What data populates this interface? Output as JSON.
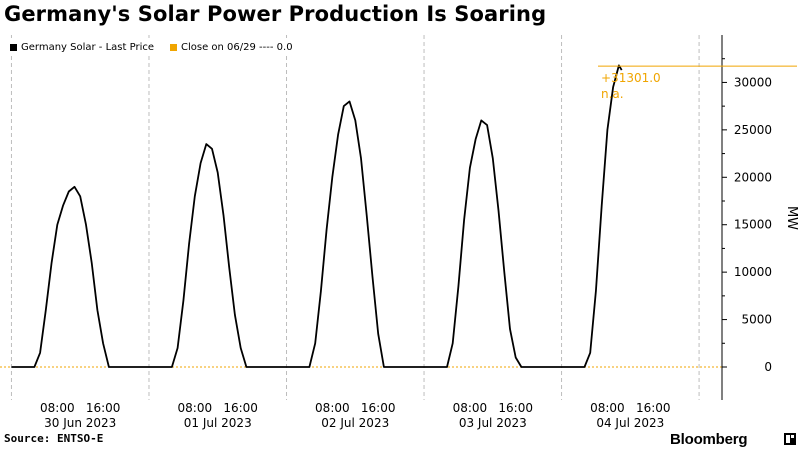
{
  "title": "Germany's Solar Power Production Is Soaring",
  "source": "Source: ENTSO-E",
  "brand": "Bloomberg",
  "legend": {
    "series_label": "Germany Solar - Last Price",
    "close_label": "Close on 06/29 ---- 0.0"
  },
  "colors": {
    "series": "#000000",
    "zero_line": "#f0a500",
    "grid": "#bdbdbd",
    "last_value": "#f0a500"
  },
  "last_value": {
    "value_label": "+31301.0",
    "change_label": "n.a."
  },
  "chart_data": {
    "type": "line",
    "title": "Germany's Solar Power Production Is Soaring",
    "xlabel": "",
    "ylabel": "MW",
    "ylim": [
      -500,
      35000
    ],
    "yticks": [
      0,
      5000,
      10000,
      15000,
      20000,
      25000,
      30000
    ],
    "y_axis_side": "right",
    "xlim": [
      "2023-06-29 22:00",
      "2023-07-05 04:00"
    ],
    "x_day_ticks": [
      "2023-06-30",
      "2023-07-01",
      "2023-07-02",
      "2023-07-03",
      "2023-07-04",
      "2023-07-05"
    ],
    "x_hour_labels": [
      "08:00",
      "16:00"
    ],
    "x_date_labels": [
      "30 Jun 2023",
      "01 Jul 2023",
      "02 Jul 2023",
      "03 Jul 2023",
      "04 Jul 2023"
    ],
    "grid": true,
    "legend_position": "top-left",
    "reference_line": {
      "name": "Close on 06/29",
      "value": 0.0
    },
    "series": [
      {
        "name": "Germany Solar - Last Price",
        "points": [
          [
            "2023-06-30 00:00",
            0
          ],
          [
            "2023-06-30 04:00",
            0
          ],
          [
            "2023-06-30 05:00",
            1500
          ],
          [
            "2023-06-30 06:00",
            6000
          ],
          [
            "2023-06-30 07:00",
            11000
          ],
          [
            "2023-06-30 08:00",
            15000
          ],
          [
            "2023-06-30 09:00",
            17000
          ],
          [
            "2023-06-30 10:00",
            18500
          ],
          [
            "2023-06-30 11:00",
            19000
          ],
          [
            "2023-06-30 12:00",
            18000
          ],
          [
            "2023-06-30 13:00",
            15000
          ],
          [
            "2023-06-30 14:00",
            11000
          ],
          [
            "2023-06-30 15:00",
            6000
          ],
          [
            "2023-06-30 16:00",
            2500
          ],
          [
            "2023-06-30 17:00",
            0
          ],
          [
            "2023-07-01 04:00",
            0
          ],
          [
            "2023-07-01 05:00",
            2000
          ],
          [
            "2023-07-01 06:00",
            7000
          ],
          [
            "2023-07-01 07:00",
            13000
          ],
          [
            "2023-07-01 08:00",
            18000
          ],
          [
            "2023-07-01 09:00",
            21500
          ],
          [
            "2023-07-01 10:00",
            23500
          ],
          [
            "2023-07-01 11:00",
            23000
          ],
          [
            "2023-07-01 12:00",
            20500
          ],
          [
            "2023-07-01 13:00",
            16000
          ],
          [
            "2023-07-01 14:00",
            10500
          ],
          [
            "2023-07-01 15:00",
            5500
          ],
          [
            "2023-07-01 16:00",
            2000
          ],
          [
            "2023-07-01 17:00",
            0
          ],
          [
            "2023-07-02 04:00",
            0
          ],
          [
            "2023-07-02 05:00",
            2500
          ],
          [
            "2023-07-02 06:00",
            8000
          ],
          [
            "2023-07-02 07:00",
            14500
          ],
          [
            "2023-07-02 08:00",
            20000
          ],
          [
            "2023-07-02 09:00",
            24500
          ],
          [
            "2023-07-02 10:00",
            27500
          ],
          [
            "2023-07-02 11:00",
            28000
          ],
          [
            "2023-07-02 12:00",
            26000
          ],
          [
            "2023-07-02 13:00",
            22000
          ],
          [
            "2023-07-02 14:00",
            16000
          ],
          [
            "2023-07-02 15:00",
            9500
          ],
          [
            "2023-07-02 16:00",
            3500
          ],
          [
            "2023-07-02 17:00",
            0
          ],
          [
            "2023-07-03 04:00",
            0
          ],
          [
            "2023-07-03 05:00",
            2500
          ],
          [
            "2023-07-03 06:00",
            8500
          ],
          [
            "2023-07-03 07:00",
            15500
          ],
          [
            "2023-07-03 08:00",
            21000
          ],
          [
            "2023-07-03 09:00",
            24000
          ],
          [
            "2023-07-03 10:00",
            26000
          ],
          [
            "2023-07-03 11:00",
            25500
          ],
          [
            "2023-07-03 12:00",
            22000
          ],
          [
            "2023-07-03 13:00",
            16500
          ],
          [
            "2023-07-03 14:00",
            10000
          ],
          [
            "2023-07-03 15:00",
            4000
          ],
          [
            "2023-07-03 16:00",
            1000
          ],
          [
            "2023-07-03 17:00",
            0
          ],
          [
            "2023-07-04 04:00",
            0
          ],
          [
            "2023-07-04 05:00",
            1500
          ],
          [
            "2023-07-04 06:00",
            8000
          ],
          [
            "2023-07-04 07:00",
            17000
          ],
          [
            "2023-07-04 08:00",
            25000
          ],
          [
            "2023-07-04 09:00",
            29500
          ],
          [
            "2023-07-04 10:00",
            31800
          ],
          [
            "2023-07-04 10:30",
            31301
          ]
        ]
      }
    ]
  }
}
